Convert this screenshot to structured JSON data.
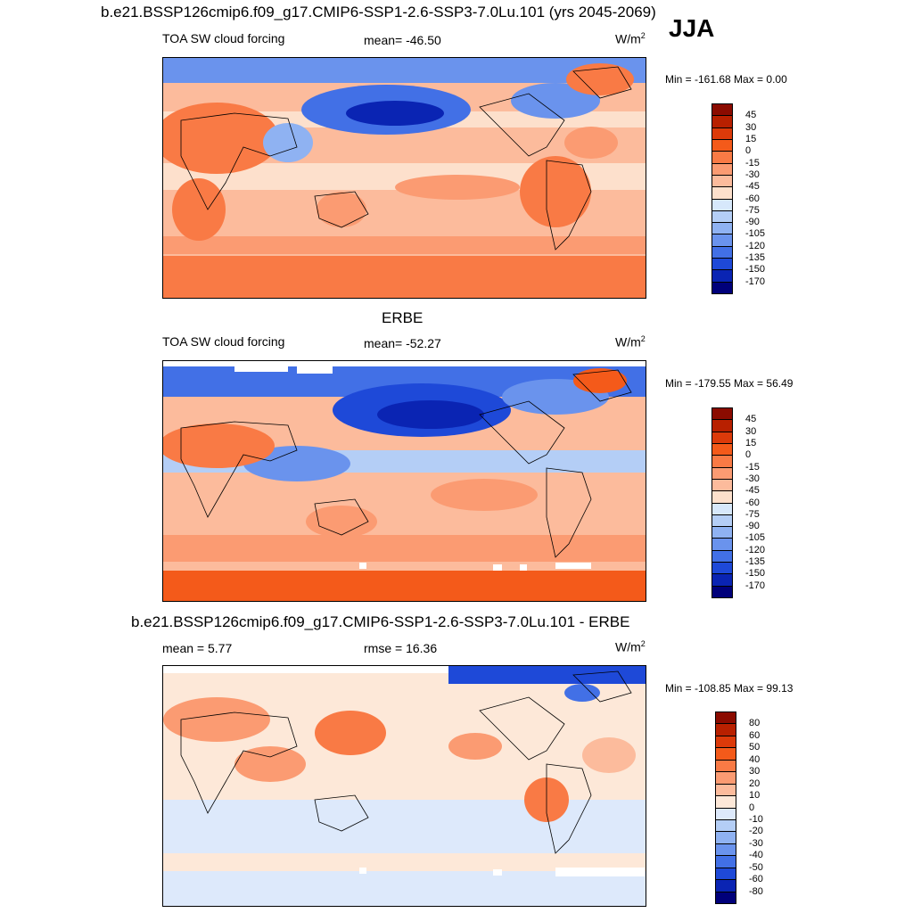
{
  "header": {
    "title": "b.e21.BSSP126cmip6.f09_g17.CMIP6-SSP1-2.6-SSP3-7.0Lu.101 (yrs 2045-2069)",
    "season": "JJA"
  },
  "panels": [
    {
      "id": "model",
      "heading": "",
      "variable": "TOA SW cloud forcing",
      "stat_center": "mean= -46.50",
      "stat_left": "",
      "unit": "W/m",
      "unit_sup": "2",
      "minmax": "Min = -161.68 Max =   0.00",
      "colorbar": {
        "labels": [
          "45",
          "30",
          "15",
          "0",
          "-15",
          "-30",
          "-45",
          "-60",
          "-75",
          "-90",
          "-105",
          "-120",
          "-135",
          "-150",
          "-170"
        ],
        "colors": [
          "#8b0b00",
          "#b82000",
          "#dc3a0a",
          "#f45a1a",
          "#f97a45",
          "#fb9b72",
          "#fcbb9c",
          "#fde0cc",
          "#d7e8fb",
          "#b4cef6",
          "#8fb2f2",
          "#6a93ed",
          "#4270e6",
          "#1e49d8",
          "#0a24b3",
          "#00007a"
        ]
      }
    },
    {
      "id": "obs",
      "heading": "ERBE",
      "variable": "TOA SW cloud forcing",
      "stat_center": "mean= -52.27",
      "stat_left": "",
      "unit": "W/m",
      "unit_sup": "2",
      "minmax": "Min = -179.55 Max =  56.49",
      "colorbar": {
        "labels": [
          "45",
          "30",
          "15",
          "0",
          "-15",
          "-30",
          "-45",
          "-60",
          "-75",
          "-90",
          "-105",
          "-120",
          "-135",
          "-150",
          "-170"
        ],
        "colors": [
          "#8b0b00",
          "#b82000",
          "#dc3a0a",
          "#f45a1a",
          "#f97a45",
          "#fb9b72",
          "#fcbb9c",
          "#fde0cc",
          "#d7e8fb",
          "#b4cef6",
          "#8fb2f2",
          "#6a93ed",
          "#4270e6",
          "#1e49d8",
          "#0a24b3",
          "#00007a"
        ]
      }
    },
    {
      "id": "diff",
      "heading": "b.e21.BSSP126cmip6.f09_g17.CMIP6-SSP1-2.6-SSP3-7.0Lu.101 - ERBE",
      "variable": "",
      "stat_left": "mean =   5.77",
      "stat_center": "rmse =  16.36",
      "unit": "W/m",
      "unit_sup": "2",
      "minmax": "Min = -108.85 Max =  99.13",
      "colorbar": {
        "labels": [
          "80",
          "60",
          "50",
          "40",
          "30",
          "20",
          "10",
          "0",
          "-10",
          "-20",
          "-30",
          "-40",
          "-50",
          "-60",
          "-80"
        ],
        "colors": [
          "#8b0b00",
          "#b82000",
          "#dc3a0a",
          "#f45a1a",
          "#f97a45",
          "#fb9b72",
          "#fcbb9c",
          "#fde8d8",
          "#dde9fb",
          "#b4cef6",
          "#8fb2f2",
          "#6a93ed",
          "#4270e6",
          "#1e49d8",
          "#0a24b3",
          "#00007a"
        ]
      }
    }
  ]
}
